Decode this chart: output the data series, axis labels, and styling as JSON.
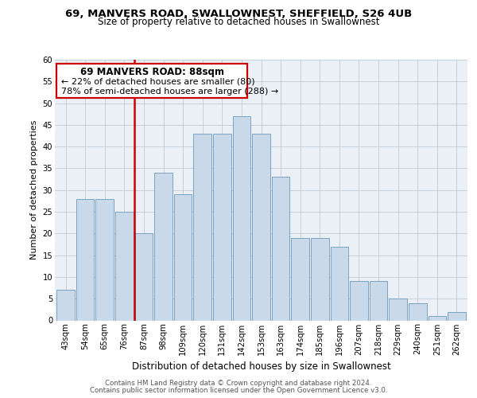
{
  "title_line1": "69, MANVERS ROAD, SWALLOWNEST, SHEFFIELD, S26 4UB",
  "title_line2": "Size of property relative to detached houses in Swallownest",
  "xlabel": "Distribution of detached houses by size in Swallownest",
  "ylabel": "Number of detached properties",
  "footer_line1": "Contains HM Land Registry data © Crown copyright and database right 2024.",
  "footer_line2": "Contains public sector information licensed under the Open Government Licence v3.0.",
  "categories": [
    "43sqm",
    "54sqm",
    "65sqm",
    "76sqm",
    "87sqm",
    "98sqm",
    "109sqm",
    "120sqm",
    "131sqm",
    "142sqm",
    "153sqm",
    "163sqm",
    "174sqm",
    "185sqm",
    "196sqm",
    "207sqm",
    "218sqm",
    "229sqm",
    "240sqm",
    "251sqm",
    "262sqm"
  ],
  "values": [
    7,
    28,
    28,
    25,
    20,
    34,
    29,
    43,
    43,
    47,
    43,
    33,
    19,
    19,
    17,
    9,
    9,
    5,
    4,
    1,
    2
  ],
  "bar_color": "#c9d9ea",
  "bar_edge_color": "#7ba3c4",
  "grid_color": "#c0ccd8",
  "ann_box_color": "#cc0000",
  "vline_color": "#cc0000",
  "ann_title": "69 MANVERS ROAD: 88sqm",
  "ann_line1": "← 22% of detached houses are smaller (80)",
  "ann_line2": "78% of semi-detached houses are larger (288) →",
  "ylim": [
    0,
    60
  ],
  "yticks": [
    0,
    5,
    10,
    15,
    20,
    25,
    30,
    35,
    40,
    45,
    50,
    55,
    60
  ],
  "bg_color": "#eaf0f6",
  "title_fontsize": 9.5,
  "subtitle_fontsize": 8.5,
  "ylabel_fontsize": 8.0,
  "xlabel_fontsize": 8.5,
  "tick_fontsize": 7.2,
  "footer_fontsize": 6.2
}
